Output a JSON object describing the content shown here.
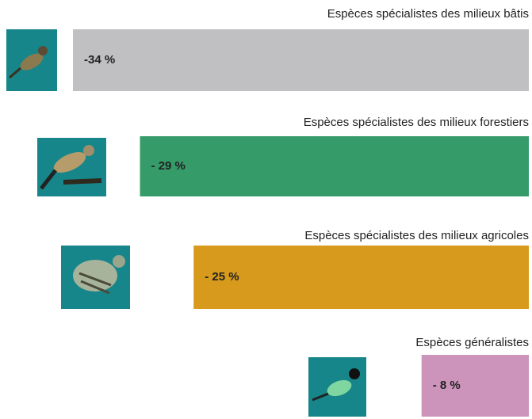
{
  "chart_data": {
    "type": "bar",
    "orientation": "horizontal",
    "categories": [
      "Espèces spécialistes des milieux bâtis",
      "Espèces spécialistes des milieux forestiers",
      "Espèces spécialistes des milieux agricoles",
      "Espèces généralistes"
    ],
    "values": [
      -34,
      -29,
      -25,
      -8
    ],
    "value_labels": [
      "-34 %",
      "- 29 %",
      "- 25 %",
      "- 8 %"
    ],
    "colors": [
      "#c0c0c2",
      "#359b69",
      "#d79a1c",
      "#cc93bb"
    ],
    "xlim": [
      -34,
      0
    ]
  }
}
